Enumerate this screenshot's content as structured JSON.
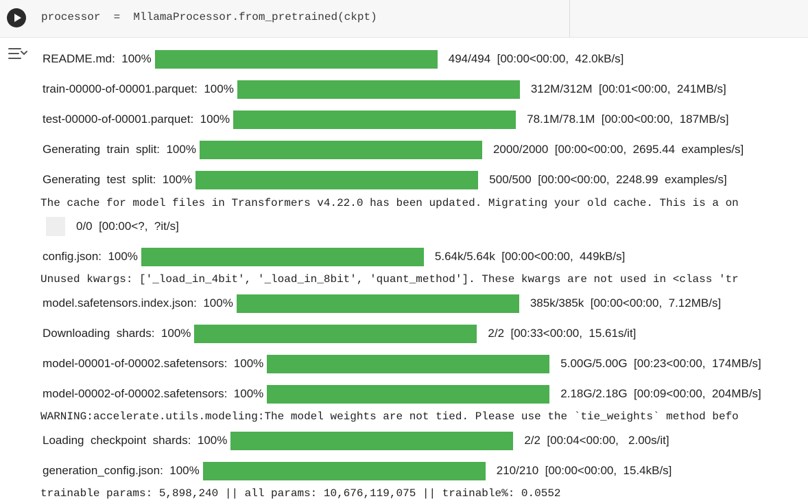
{
  "code_cell": {
    "code": "processor  =  MllamaProcessor.from_pretrained(ckpt)"
  },
  "progress": [
    {
      "label": "README.md:  100%",
      "fraction": 1.0,
      "stats": "494/494  [00:00<00:00,  42.0kB/s]"
    },
    {
      "label": "train-00000-of-00001.parquet:  100%",
      "fraction": 1.0,
      "stats": "312M/312M  [00:01<00:00,  241MB/s]"
    },
    {
      "label": "test-00000-of-00001.parquet:  100%",
      "fraction": 1.0,
      "stats": "78.1M/78.1M  [00:00<00:00,  187MB/s]"
    },
    {
      "label": "Generating  train  split:  100%",
      "fraction": 1.0,
      "stats": "2000/2000  [00:00<00:00,  2695.44  examples/s]"
    },
    {
      "label": "Generating  test  split:  100%",
      "fraction": 1.0,
      "stats": "500/500  [00:00<00:00,  2248.99  examples/s]"
    },
    {
      "label": "",
      "fraction": 0.0,
      "stats": "0/0  [00:00<?,  ?it/s]"
    },
    {
      "label": "config.json:  100%",
      "fraction": 1.0,
      "stats": "5.64k/5.64k  [00:00<00:00,  449kB/s]"
    },
    {
      "label": "model.safetensors.index.json:  100%",
      "fraction": 1.0,
      "stats": "385k/385k  [00:00<00:00,  7.12MB/s]"
    },
    {
      "label": "Downloading  shards:  100%",
      "fraction": 1.0,
      "stats": "2/2  [00:33<00:00,  15.61s/it]"
    },
    {
      "label": "model-00001-of-00002.safetensors:  100%",
      "fraction": 1.0,
      "stats": "5.00G/5.00G  [00:23<00:00,  174MB/s]"
    },
    {
      "label": "model-00002-of-00002.safetensors:  100%",
      "fraction": 1.0,
      "stats": "2.18G/2.18G  [00:09<00:00,  204MB/s]"
    },
    {
      "label": "Loading  checkpoint  shards:  100%",
      "fraction": 1.0,
      "stats": "2/2  [00:04<00:00,   2.00s/it]"
    },
    {
      "label": "generation_config.json:  100%",
      "fraction": 1.0,
      "stats": "210/210  [00:00<00:00,  15.4kB/s]"
    }
  ],
  "messages": [
    "The cache for model files in Transformers v4.22.0 has been updated. Migrating your old cache. This is a on",
    "Unused kwargs: ['_load_in_4bit', '_load_in_8bit', 'quant_method']. These kwargs are not used in <class 'tr",
    "WARNING:accelerate.utils.modeling:The model weights are not tied. Please use the `tie_weights` method befo",
    "trainable params: 5,898,240 || all params: 10,676,119,075 || trainable%: 0.0552"
  ]
}
